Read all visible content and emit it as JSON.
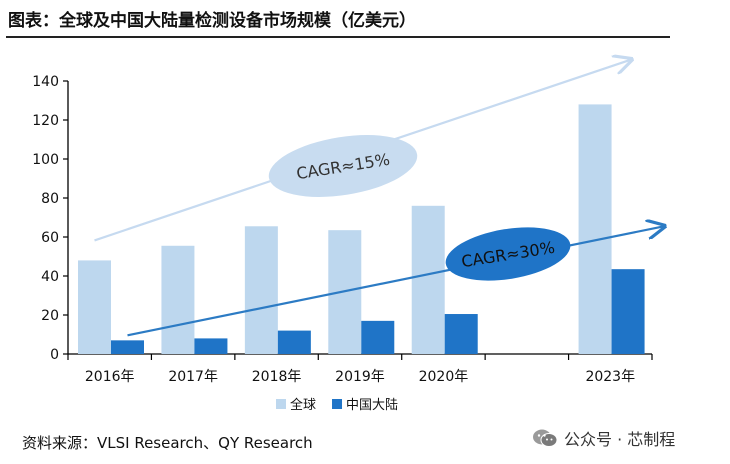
{
  "header": {
    "title": "图表：全球及中国大陆量检测设备市场规模（亿美元）"
  },
  "chart_data": {
    "type": "bar",
    "categories": [
      "2016年",
      "2017年",
      "2018年",
      "2019年",
      "2020年",
      "",
      "2023年"
    ],
    "series": [
      {
        "name": "全球",
        "color": "#bdd7ee",
        "values": [
          48,
          55.5,
          65.5,
          63.5,
          76,
          null,
          128
        ]
      },
      {
        "name": "中国大陆",
        "color": "#1f74c7",
        "values": [
          7,
          8,
          12,
          17,
          20.5,
          null,
          43.5
        ]
      }
    ],
    "ylim": [
      0,
      140
    ],
    "yticks": [
      0,
      20,
      40,
      60,
      80,
      100,
      120,
      140
    ],
    "xlabel": "",
    "ylabel": "",
    "legend_position": "bottom-center",
    "annotations": [
      {
        "text": "CAGR≈15%",
        "series": "全球",
        "fill": "#c8dcf0",
        "text_color": "#333333",
        "arrow_color": "#c6daf0"
      },
      {
        "text": "CAGR≈30%",
        "series": "中国大陆",
        "fill": "#1f74c7",
        "text_color": "#111111",
        "arrow_color": "#2c7bc4"
      }
    ]
  },
  "footer": {
    "source": "资料来源：VLSI Research、QY Research"
  },
  "watermark": {
    "icon": "wechat-icon",
    "text": "公众号 · 芯制程"
  }
}
